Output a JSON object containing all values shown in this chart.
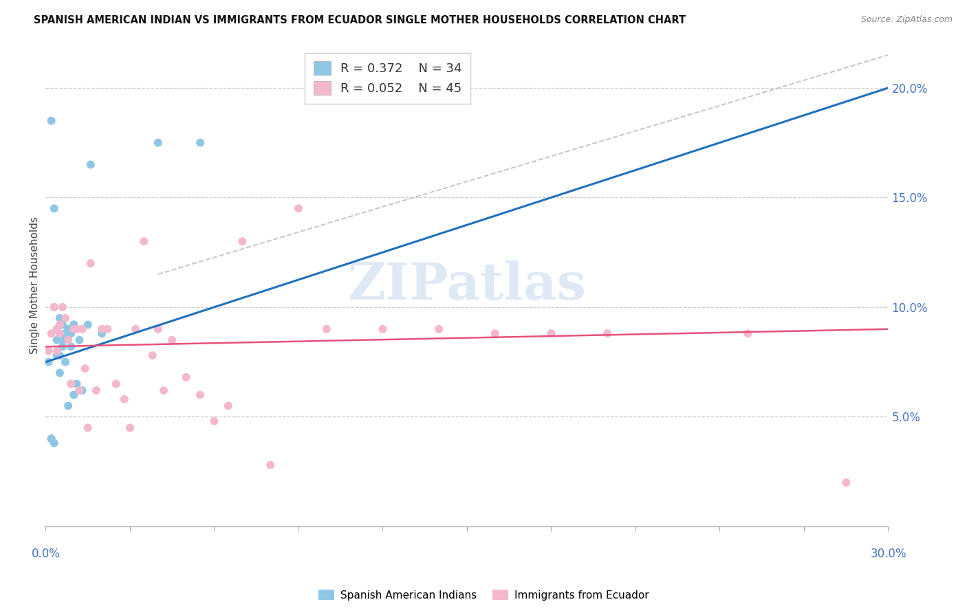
{
  "title": "SPANISH AMERICAN INDIAN VS IMMIGRANTS FROM ECUADOR SINGLE MOTHER HOUSEHOLDS CORRELATION CHART",
  "source": "Source: ZipAtlas.com",
  "ylabel": "Single Mother Households",
  "legend1_r": "R = 0.372",
  "legend1_n": "N = 34",
  "legend2_r": "R = 0.052",
  "legend2_n": "N = 45",
  "color_blue": "#8ec6e6",
  "color_blue_line": "#2070c0",
  "color_pink": "#f4b8cc",
  "color_pink_line": "#e8507a",
  "watermark": "ZIPatlas",
  "xlim": [
    0.0,
    0.3
  ],
  "ylim": [
    0.0,
    0.22
  ],
  "right_ytick_vals": [
    0.05,
    0.1,
    0.15,
    0.2
  ],
  "right_ytick_labels": [
    "5.0%",
    "10.0%",
    "15.0%",
    "20.0%"
  ],
  "blue_x": [
    0.001,
    0.002,
    0.002,
    0.002,
    0.003,
    0.003,
    0.003,
    0.004,
    0.004,
    0.004,
    0.005,
    0.005,
    0.005,
    0.005,
    0.006,
    0.006,
    0.006,
    0.007,
    0.007,
    0.007,
    0.008,
    0.008,
    0.009,
    0.009,
    0.01,
    0.01,
    0.011,
    0.012,
    0.013,
    0.015,
    0.016,
    0.02,
    0.04,
    0.055
  ],
  "blue_y": [
    0.075,
    0.185,
    0.04,
    0.04,
    0.145,
    0.1,
    0.038,
    0.09,
    0.085,
    0.078,
    0.095,
    0.088,
    0.078,
    0.07,
    0.092,
    0.085,
    0.082,
    0.088,
    0.088,
    0.075,
    0.09,
    0.055,
    0.088,
    0.082,
    0.092,
    0.06,
    0.065,
    0.085,
    0.062,
    0.092,
    0.165,
    0.088,
    0.175,
    0.175
  ],
  "pink_x": [
    0.001,
    0.002,
    0.003,
    0.004,
    0.004,
    0.005,
    0.005,
    0.006,
    0.007,
    0.008,
    0.009,
    0.01,
    0.011,
    0.012,
    0.013,
    0.014,
    0.015,
    0.016,
    0.018,
    0.02,
    0.022,
    0.025,
    0.028,
    0.03,
    0.032,
    0.035,
    0.038,
    0.04,
    0.042,
    0.045,
    0.05,
    0.055,
    0.06,
    0.065,
    0.07,
    0.08,
    0.09,
    0.1,
    0.12,
    0.14,
    0.16,
    0.18,
    0.2,
    0.25,
    0.285
  ],
  "pink_y": [
    0.08,
    0.088,
    0.1,
    0.09,
    0.08,
    0.092,
    0.088,
    0.1,
    0.095,
    0.085,
    0.065,
    0.09,
    0.09,
    0.062,
    0.09,
    0.072,
    0.045,
    0.12,
    0.062,
    0.09,
    0.09,
    0.065,
    0.058,
    0.045,
    0.09,
    0.13,
    0.078,
    0.09,
    0.062,
    0.085,
    0.068,
    0.06,
    0.048,
    0.055,
    0.13,
    0.028,
    0.145,
    0.09,
    0.09,
    0.09,
    0.088,
    0.088,
    0.088,
    0.088,
    0.02
  ]
}
